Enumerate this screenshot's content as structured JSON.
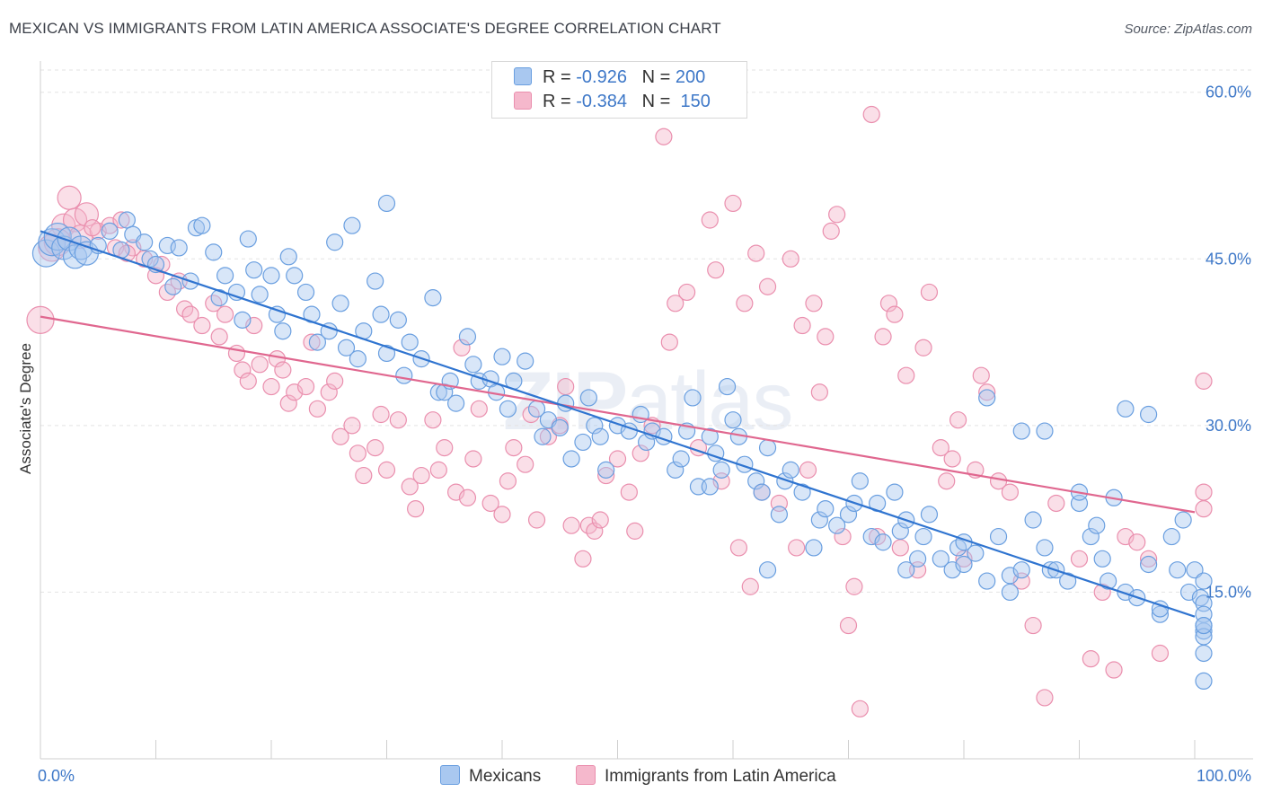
{
  "title": "MEXICAN VS IMMIGRANTS FROM LATIN AMERICA ASSOCIATE'S DEGREE CORRELATION CHART",
  "source": "Source: ZipAtlas.com",
  "watermark": {
    "bold": "ZIP",
    "light": "atlas"
  },
  "colors": {
    "blue_fill": "#a9c8f0",
    "blue_stroke": "#6a9fe0",
    "blue_line": "#2f74d0",
    "pink_fill": "#f5b8cc",
    "pink_stroke": "#ea8fae",
    "pink_line": "#e0678f",
    "axis_text": "#3e78c8",
    "grid": "#e3e3e3"
  },
  "legend": {
    "row1": {
      "r_label": "R =",
      "r_value": "-0.926",
      "n_label": "N =",
      "n_value": "200"
    },
    "row2": {
      "r_label": "R =",
      "r_value": "-0.384",
      "n_label": "N =",
      "n_value": "150"
    }
  },
  "bottom_legend": {
    "series1": "Mexicans",
    "series2": "Immigrants from Latin America"
  },
  "chart_data": {
    "type": "scatter",
    "title": "MEXICAN VS IMMIGRANTS FROM LATIN AMERICA ASSOCIATE'S DEGREE CORRELATION CHART",
    "xlabel": "",
    "ylabel": "Associate's Degree",
    "xlim": [
      0,
      100
    ],
    "ylim": [
      0,
      62
    ],
    "x_tick_labels": [
      "0.0%",
      "100.0%"
    ],
    "y_ticks": [
      15,
      30,
      45,
      60
    ],
    "y_tick_labels": [
      "15.0%",
      "30.0%",
      "45.0%",
      "60.0%"
    ],
    "grid": true,
    "series": [
      {
        "name": "Mexicans",
        "R": -0.926,
        "N": 200,
        "trend": {
          "x": [
            0,
            100
          ],
          "y": [
            47.5,
            12.8
          ]
        },
        "points": [
          [
            0.5,
            45.5
          ],
          [
            1,
            46.5
          ],
          [
            1.5,
            47
          ],
          [
            2,
            46
          ],
          [
            2.5,
            46.8
          ],
          [
            3,
            45.2
          ],
          [
            3.5,
            46
          ],
          [
            4,
            45.5
          ],
          [
            5,
            46.2
          ],
          [
            6,
            47.5
          ],
          [
            7,
            45.8
          ],
          [
            7.5,
            48.5
          ],
          [
            8,
            47.2
          ],
          [
            9,
            46.5
          ],
          [
            9.5,
            45
          ],
          [
            10,
            44.5
          ],
          [
            11,
            46.2
          ],
          [
            11.5,
            42.5
          ],
          [
            12,
            46
          ],
          [
            13,
            43
          ],
          [
            13.5,
            47.8
          ],
          [
            14,
            48
          ],
          [
            15,
            45.6
          ],
          [
            15.5,
            41.5
          ],
          [
            16,
            43.5
          ],
          [
            17,
            42
          ],
          [
            17.5,
            39.5
          ],
          [
            18,
            46.8
          ],
          [
            18.5,
            44
          ],
          [
            19,
            41.8
          ],
          [
            20,
            43.5
          ],
          [
            20.5,
            40
          ],
          [
            21,
            38.5
          ],
          [
            21.5,
            45.2
          ],
          [
            22,
            43.5
          ],
          [
            23,
            42
          ],
          [
            23.5,
            40
          ],
          [
            24,
            37.5
          ],
          [
            25,
            38.5
          ],
          [
            25.5,
            46.5
          ],
          [
            26,
            41
          ],
          [
            26.5,
            37
          ],
          [
            27,
            48
          ],
          [
            27.5,
            36
          ],
          [
            28,
            38.5
          ],
          [
            29,
            43
          ],
          [
            29.5,
            40
          ],
          [
            30,
            36.5
          ],
          [
            31,
            39.5
          ],
          [
            31.5,
            34.5
          ],
          [
            32,
            37.5
          ],
          [
            33,
            36
          ],
          [
            34,
            41.5
          ],
          [
            34.5,
            33
          ],
          [
            35,
            33
          ],
          [
            35.5,
            34
          ],
          [
            36,
            32
          ],
          [
            37,
            38
          ],
          [
            37.5,
            35.5
          ],
          [
            38,
            34
          ],
          [
            39,
            34.2
          ],
          [
            39.5,
            33
          ],
          [
            40,
            36.2
          ],
          [
            40.5,
            31.5
          ],
          [
            41,
            34
          ],
          [
            42,
            35.8
          ],
          [
            43,
            31.5
          ],
          [
            43.5,
            29
          ],
          [
            44,
            30.5
          ],
          [
            45,
            29.8
          ],
          [
            45.5,
            32
          ],
          [
            46,
            27
          ],
          [
            47,
            28.5
          ],
          [
            47.5,
            32.5
          ],
          [
            48,
            30
          ],
          [
            48.5,
            29
          ],
          [
            49,
            26
          ],
          [
            50,
            30
          ],
          [
            51,
            29.5
          ],
          [
            52,
            31
          ],
          [
            52.5,
            28.5
          ],
          [
            53,
            29.5
          ],
          [
            54,
            29
          ],
          [
            55,
            26
          ],
          [
            55.5,
            27
          ],
          [
            56,
            29.5
          ],
          [
            56.5,
            32.5
          ],
          [
            57,
            24.5
          ],
          [
            58,
            29
          ],
          [
            58.5,
            27.5
          ],
          [
            59,
            26
          ],
          [
            59.5,
            33.5
          ],
          [
            60,
            30.5
          ],
          [
            60.5,
            29
          ],
          [
            61,
            26.5
          ],
          [
            62,
            25
          ],
          [
            62.5,
            24
          ],
          [
            63,
            28
          ],
          [
            64,
            22
          ],
          [
            64.5,
            25
          ],
          [
            65,
            26
          ],
          [
            66,
            24
          ],
          [
            67,
            19
          ],
          [
            67.5,
            21.5
          ],
          [
            68,
            22.5
          ],
          [
            69,
            21
          ],
          [
            70,
            22
          ],
          [
            70.5,
            23
          ],
          [
            71,
            25
          ],
          [
            72,
            20
          ],
          [
            72.5,
            23
          ],
          [
            73,
            19.5
          ],
          [
            74,
            24
          ],
          [
            74.5,
            20.5
          ],
          [
            75,
            21.5
          ],
          [
            76,
            18
          ],
          [
            76.5,
            20
          ],
          [
            77,
            22
          ],
          [
            78,
            18
          ],
          [
            79,
            17
          ],
          [
            79.5,
            19
          ],
          [
            80,
            17.5
          ],
          [
            81,
            18.5
          ],
          [
            82,
            16
          ],
          [
            83,
            20
          ],
          [
            84,
            16.5
          ],
          [
            85,
            17
          ],
          [
            86,
            21.5
          ],
          [
            87,
            19
          ],
          [
            87.5,
            17
          ],
          [
            88,
            17
          ],
          [
            89,
            16
          ],
          [
            90,
            23
          ],
          [
            91,
            20
          ],
          [
            92,
            18
          ],
          [
            92.5,
            16
          ],
          [
            93,
            23.5
          ],
          [
            94,
            15
          ],
          [
            95,
            14.5
          ],
          [
            96,
            17.5
          ],
          [
            97,
            13
          ],
          [
            98,
            20
          ],
          [
            98.5,
            17
          ],
          [
            99,
            21.5
          ],
          [
            99.5,
            15
          ],
          [
            100,
            17
          ],
          [
            100.5,
            14.5
          ],
          [
            101,
            14
          ],
          [
            101.5,
            16
          ],
          [
            102,
            13
          ],
          [
            102.5,
            11.5
          ],
          [
            103,
            12
          ],
          [
            103.5,
            9.5
          ],
          [
            104,
            7
          ],
          [
            104.5,
            11
          ],
          [
            105,
            12
          ],
          [
            96,
            31
          ],
          [
            94,
            31.5
          ],
          [
            90,
            24
          ],
          [
            91.5,
            21
          ],
          [
            82,
            32.5
          ],
          [
            85,
            29.5
          ],
          [
            87,
            29.5
          ],
          [
            58,
            24.5
          ],
          [
            63,
            17
          ],
          [
            75,
            17
          ],
          [
            80,
            19.5
          ],
          [
            84,
            15
          ],
          [
            97,
            13.5
          ],
          [
            30,
            50
          ]
        ]
      },
      {
        "name": "Immigrants from Latin America",
        "R": -0.384,
        "N": 150,
        "trend": {
          "x": [
            0,
            100
          ],
          "y": [
            39.8,
            22.2
          ]
        },
        "points": [
          [
            0,
            39.5
          ],
          [
            1,
            46
          ],
          [
            2,
            48
          ],
          [
            2.5,
            50.5
          ],
          [
            3,
            48.5
          ],
          [
            3.5,
            47
          ],
          [
            4,
            49
          ],
          [
            5,
            47.5
          ],
          [
            6,
            48
          ],
          [
            6.5,
            46
          ],
          [
            7,
            48.5
          ],
          [
            8,
            46
          ],
          [
            9,
            45
          ],
          [
            10,
            43.5
          ],
          [
            10.5,
            44.5
          ],
          [
            11,
            42
          ],
          [
            12,
            43
          ],
          [
            12.5,
            40.5
          ],
          [
            13,
            40
          ],
          [
            14,
            39
          ],
          [
            15,
            41
          ],
          [
            15.5,
            38
          ],
          [
            16,
            40
          ],
          [
            17,
            36.5
          ],
          [
            17.5,
            35
          ],
          [
            18,
            34
          ],
          [
            18.5,
            39
          ],
          [
            19,
            35.5
          ],
          [
            20,
            33.5
          ],
          [
            20.5,
            36
          ],
          [
            21,
            35
          ],
          [
            21.5,
            32
          ],
          [
            22,
            33
          ],
          [
            23,
            33.5
          ],
          [
            23.5,
            37.5
          ],
          [
            24,
            31.5
          ],
          [
            25,
            33
          ],
          [
            25.5,
            34
          ],
          [
            26,
            29
          ],
          [
            27,
            30
          ],
          [
            27.5,
            27.5
          ],
          [
            28,
            25.5
          ],
          [
            29,
            28
          ],
          [
            29.5,
            31
          ],
          [
            30,
            26
          ],
          [
            31,
            30.5
          ],
          [
            32,
            24.5
          ],
          [
            32.5,
            22.5
          ],
          [
            33,
            25.5
          ],
          [
            34,
            30.5
          ],
          [
            34.5,
            26
          ],
          [
            35,
            28
          ],
          [
            36,
            24
          ],
          [
            36.5,
            37
          ],
          [
            37,
            23.5
          ],
          [
            37.5,
            27
          ],
          [
            38,
            31.5
          ],
          [
            39,
            23
          ],
          [
            40,
            22
          ],
          [
            40.5,
            25
          ],
          [
            41,
            28
          ],
          [
            42,
            26.5
          ],
          [
            42.5,
            31
          ],
          [
            43,
            21.5
          ],
          [
            44,
            29
          ],
          [
            45,
            30
          ],
          [
            45.5,
            33.5
          ],
          [
            46,
            21
          ],
          [
            47,
            18
          ],
          [
            47.5,
            21
          ],
          [
            48,
            20.5
          ],
          [
            48.5,
            21.5
          ],
          [
            49,
            25.5
          ],
          [
            50,
            27
          ],
          [
            51,
            24
          ],
          [
            51.5,
            20.5
          ],
          [
            52,
            27.5
          ],
          [
            53,
            30
          ],
          [
            54,
            56
          ],
          [
            54.5,
            37.5
          ],
          [
            55,
            41
          ],
          [
            56,
            42
          ],
          [
            57,
            28
          ],
          [
            58,
            48.5
          ],
          [
            58.5,
            44
          ],
          [
            59,
            25
          ],
          [
            60,
            50
          ],
          [
            60.5,
            19
          ],
          [
            61,
            41
          ],
          [
            61.5,
            15.5
          ],
          [
            62,
            45.5
          ],
          [
            62.5,
            24
          ],
          [
            63,
            42.5
          ],
          [
            64,
            23
          ],
          [
            65,
            45
          ],
          [
            65.5,
            19
          ],
          [
            66,
            39
          ],
          [
            66.5,
            26
          ],
          [
            67,
            41
          ],
          [
            67.5,
            33
          ],
          [
            68,
            38
          ],
          [
            68.5,
            47.5
          ],
          [
            69,
            49
          ],
          [
            69.5,
            20
          ],
          [
            70,
            12
          ],
          [
            70.5,
            15.5
          ],
          [
            71,
            4.5
          ],
          [
            72,
            58
          ],
          [
            72.5,
            20
          ],
          [
            73,
            38
          ],
          [
            73.5,
            41
          ],
          [
            74,
            40
          ],
          [
            74.5,
            19
          ],
          [
            75,
            34.5
          ],
          [
            76,
            17
          ],
          [
            76.5,
            37
          ],
          [
            77,
            42
          ],
          [
            78,
            28
          ],
          [
            78.5,
            25
          ],
          [
            79,
            27
          ],
          [
            79.5,
            30.5
          ],
          [
            80,
            18
          ],
          [
            81,
            26
          ],
          [
            81.5,
            34.5
          ],
          [
            82,
            33
          ],
          [
            83,
            25
          ],
          [
            84,
            24
          ],
          [
            85,
            16
          ],
          [
            86,
            12
          ],
          [
            87,
            5.5
          ],
          [
            88,
            23
          ],
          [
            90,
            18
          ],
          [
            91,
            9
          ],
          [
            92,
            15
          ],
          [
            93,
            8
          ],
          [
            94,
            20
          ],
          [
            95,
            19.5
          ],
          [
            96,
            18
          ],
          [
            97,
            9.5
          ],
          [
            104,
            34
          ],
          [
            104.5,
            24
          ],
          [
            105,
            22.5
          ],
          [
            1.5,
            46.5
          ],
          [
            4.5,
            47.8
          ],
          [
            7.5,
            45.5
          ]
        ]
      }
    ]
  }
}
